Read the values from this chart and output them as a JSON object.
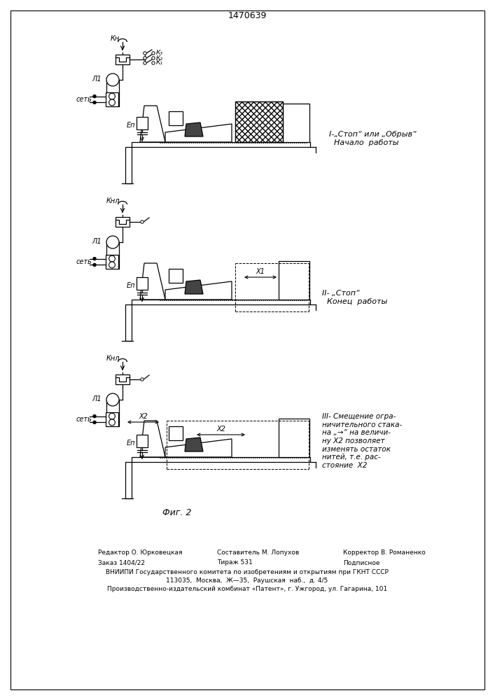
{
  "title": "1470639",
  "fig_label": "Фиг. 2",
  "background_color": "#ffffff",
  "section_I_label": "I-„Cтоп“ или „Обрыв“\n  Начало  работы",
  "section_II_label": "II- „Стоп“\n  Конец  работы",
  "section_III_label": "III- Смещение огра-\nничительного стака-\nна „→“ на величи-\nну X2 позволяет\nизменять остаток\nнитей, т.е. рас-\nстояние  X2",
  "footer_editor": "Редактор О. Юрковецкая",
  "footer_compiler": "Составитель М. Лопухов",
  "footer_corrector": "Корректор В. Романенко",
  "footer_order": "Заказ 1404/22",
  "footer_copies": "Тираж 531",
  "footer_signed": "Подписное",
  "footer_vniipи": "ВНИИПИ Государственного комитета по изобретениям и открытиям при ГКНТ СССР",
  "footer_addr": "113035,  Москва,  Ж—35,  Раушская  наб.,  д. 4/5",
  "footer_patent": "Производственно-издательский комбинат «Патент», г. Ужгород, ул. Гагарина, 101"
}
